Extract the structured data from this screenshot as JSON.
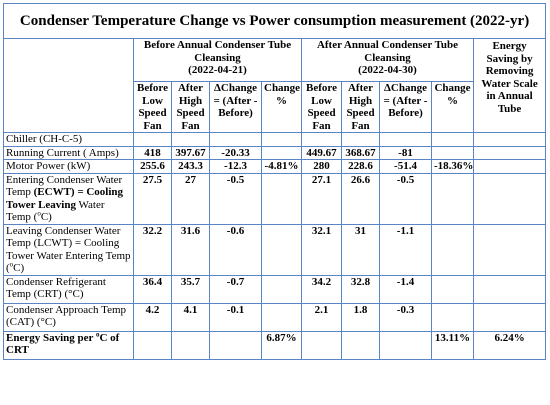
{
  "title": "Condenser Temperature Change vs Power consumption measurement (2022-yr)",
  "groups": {
    "before": {
      "label": "Before Annual Condenser Tube Cleansing",
      "date": "(2022-04-21)"
    },
    "after": {
      "label": "After Annual Condenser Tube Cleansing",
      "date": "(2022-04-30)"
    },
    "saving": "Energy Saving by Removing Water Scale in Annual Tube"
  },
  "subheaders": {
    "before_low": "Before Low Speed Fan",
    "after_high": "After High Speed Fan",
    "delta": "ΔChange = (After - Before)",
    "change_pct": "Change %"
  },
  "rows": [
    {
      "label": "Chiller (CH-C-5)",
      "values": [
        "",
        "",
        "",
        "",
        "",
        "",
        "",
        "",
        ""
      ]
    },
    {
      "label": "Running Current ( Amps)",
      "values": [
        "418",
        "397.67",
        "-20.33",
        "",
        "449.67",
        "368.67",
        "-81",
        "",
        ""
      ]
    },
    {
      "label": "Motor Power (kW)",
      "values": [
        "255.6",
        "243.3",
        "-12.3",
        "-4.81%",
        "280",
        "228.6",
        "-51.4",
        "-18.36%",
        ""
      ]
    },
    {
      "label_parts": [
        "Entering Condenser Water Temp ",
        "(ECWT) = Cooling Tower Leaving",
        " Water Temp (",
        "o",
        "C)"
      ],
      "values": [
        "27.5",
        "27",
        "-0.5",
        "",
        "27.1",
        "26.6",
        "-0.5",
        "",
        ""
      ]
    },
    {
      "label_parts": [
        "Leaving Condenser Water Temp (LCWT) = Cooling Tower Water Entering Temp (",
        "o",
        "C)"
      ],
      "values": [
        "32.2",
        "31.6",
        "-0.6",
        "",
        "32.1",
        "31",
        "-1.1",
        "",
        ""
      ]
    },
    {
      "label": "Condenser Refrigerant Temp (CRT) (°C)",
      "values": [
        "36.4",
        "35.7",
        "-0.7",
        "",
        "34.2",
        "32.8",
        "-1.4",
        "",
        ""
      ]
    },
    {
      "label": "Condenser Approach Temp (CAT) (°C)",
      "values": [
        "4.2",
        "4.1",
        "-0.1",
        "",
        "2.1",
        "1.8",
        "-0.3",
        "",
        ""
      ]
    },
    {
      "label_parts": [
        "Energy Saving per ",
        "o",
        "C of CRT"
      ],
      "values": [
        "",
        "",
        "",
        "6.87%",
        "",
        "",
        "",
        "13.11%",
        "6.24%"
      ]
    }
  ]
}
